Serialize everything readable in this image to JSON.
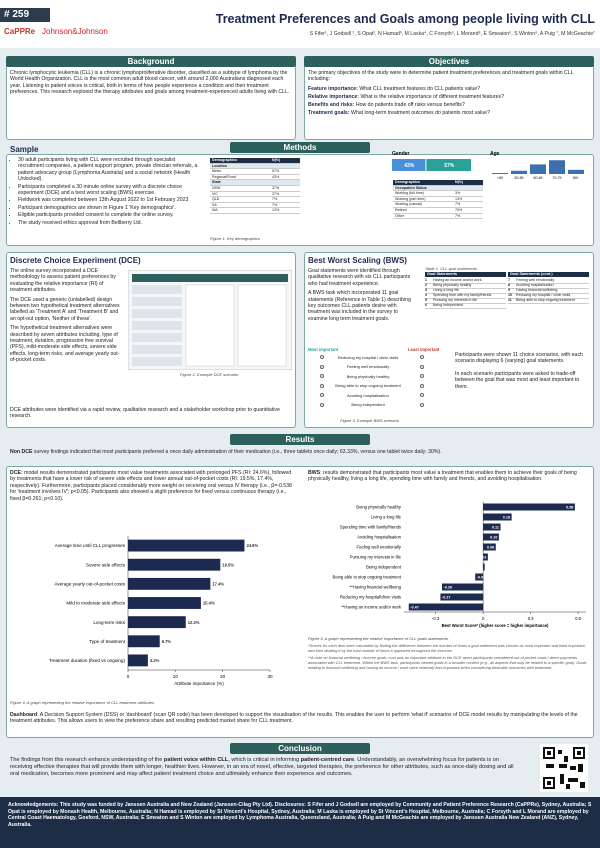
{
  "header": {
    "poster_number": "# 259",
    "logo_1": "CaPPRe",
    "logo_2": "Johnson&Johnson",
    "title": "Treatment Preferences and Goals among people living with CLL",
    "authors": "S Fifer¹, J Godsell ¹, S Opat², N Hamad³, M Laska⁴, C Forsyth⁵, L Morand⁶, E Smeaton⁶, S Winton⁶, A Puig ⁷, M McGeachie⁷"
  },
  "background": {
    "heading": "Background",
    "text": "Chronic lymphocytic leukemia (CLL) is a chronic lymphoproliferative disorder, classified as a subtype of lymphoma by the World Health Organization. CLL is the most common adult blood cancer, with around 2,000 Australians diagnosed each year. Listening to patient voices is critical, both in terms of how people experience a condition and their treatment preferences. This research explored the therapy attributes and goals among treatment-experienced adults living with CLL."
  },
  "objectives": {
    "heading": "Objectives",
    "intro": "The primary objectives of the study were to determine patient treatment preferences and treatment goals within CLL including:",
    "items": [
      {
        "label": "Feature importance:",
        "text": " What CLL treatment features do CLL patients value?"
      },
      {
        "label": "Relative importance:",
        "text": " What is the relative importance of different treatment features?"
      },
      {
        "label": "Benefits and risks:",
        "text": " How do patients trade off risks versus benefits?"
      },
      {
        "label": "Treatment goals:",
        "text": " What long-term treatment outcomes do patients most value?"
      }
    ]
  },
  "methods": {
    "heading": "Methods"
  },
  "sample": {
    "heading": "Sample",
    "bullets": [
      "30 adult participants living with CLL were recruited through specialist recruitment companies, a patient support program, private clinician referrals, a patient advocacy group (Lymphoma Australia) and a social network (Health Unlocked).",
      "Participants completed a 30 minute online survey with a discrete choice experiment (DCE) and a best worst scaling (BWS) exercise.",
      "Fieldwork was completed between 13th August 2022 to 1st February 2023",
      "Participant demographics are shown in Figure 1 'Key demographics'.",
      "Eligible participants provided consent to complete the online survey.",
      "The study received ethics approval from Bellberry Ltd."
    ],
    "table1": {
      "header": [
        "Demographics",
        "N(%)"
      ],
      "rows": [
        [
          "Location",
          ""
        ],
        [
          "Metro",
          "57%"
        ],
        [
          "Regional/Rural",
          "43%"
        ],
        [
          "State",
          ""
        ],
        [
          "NSW",
          "37%"
        ],
        [
          "VIC",
          "37%"
        ],
        [
          "QLD",
          "7%"
        ],
        [
          "SA",
          "7%"
        ],
        [
          "WA",
          "13%"
        ]
      ]
    },
    "table2": {
      "header": [
        "Demographics",
        "N(%)"
      ],
      "rows": [
        [
          "Occupation Status",
          ""
        ],
        [
          "Working (full time)",
          "3%"
        ],
        [
          "Working (part time)",
          "13%"
        ],
        [
          "Working (casual)",
          "7%"
        ],
        [
          "Retired",
          "70%"
        ],
        [
          "Other",
          "7%"
        ]
      ]
    },
    "caption": "Figure 1. Key demographics",
    "gender": {
      "label": "Gender",
      "values": [
        43,
        57
      ],
      "value_labels": [
        "43%",
        "57%"
      ],
      "colors": [
        "#4a90d9",
        "#2aa198"
      ]
    },
    "age": {
      "label": "Age",
      "categories": [
        "<50",
        "50-59",
        "60-69",
        "70-79",
        "80+"
      ],
      "values": [
        3,
        10,
        30,
        43,
        13
      ],
      "color": "#3d6fb0",
      "ylim": [
        0,
        50
      ]
    }
  },
  "dce": {
    "heading": "Discrete Choice Experiment (DCE)",
    "paragraphs": [
      "The online survey incorporated a DCE methodology to assess patient preferences by evaluating the relative importance (RI) of treatment attributes.",
      "The DCE used a generic (unlabelled) design between two hypothetical treatment alternatives labelled as 'Treatment A' and 'Treatment B' and an opt-out option, 'Neither of these'.",
      "The hypothetical treatment alternatives were described by seven attributes including, type of treatment, duration, progression free survival (PFS), mild-moderate side effects, severe side effects, long-term risks, and average yearly out-of-pocket costs."
    ],
    "footer": "DCE attributes were identified via a rapid review, qualitative research and a stakeholder workshop prior to quantitative research.",
    "caption": "Figure 2. Example DCE scenario"
  },
  "bws": {
    "heading": "Best Worst Scaling (BWS)",
    "paragraphs": [
      "Goal statements were identified through qualitative research with six CLL participants who had treatment experience.",
      "A BWS task which incorporated 11 goal statements (Reference in Table 1) describing key outcomes CLL patients desire with treatment was included in the survey to examine long term treatment goals."
    ],
    "table_caption": "Table 1. CLL goal statements",
    "table_header": [
      "Goal Statements",
      "Goal Statements (cont.)"
    ],
    "goals": [
      "Having an income and/or work",
      "Being physically healthy",
      "Living a long life",
      "Spending time with my family/friends",
      "Pursuing my interests in life",
      "Being independent",
      "Feeling well emotionally",
      "Avoiding hospitalisation",
      "Having financial wellbeing",
      "Reducing my hospital / clinic visits",
      "Being able to stop ongoing treatment"
    ],
    "example_most": "Most important",
    "example_least": "Least important",
    "example_items": [
      "Reducing my hospital / clinic visits",
      "Feeling well emotionally",
      "Being physically healthy",
      "Being able to stop ongoing treatment",
      "Avoiding hospitalisation",
      "Being independent"
    ],
    "caption": "Figure 3. Example BWS scenario",
    "right_paragraphs": [
      "Participants were shown 11 choice scenarios, with each scenario displaying 6 (varying) goal statements.",
      "In each scenario participants were asked to trade-off between the goal that was most and least important to them."
    ]
  },
  "results": {
    "heading": "Results",
    "non_dce_label": "Non DCE",
    "non_dce_text": " survey findings indicated that most participants preferred a once daily administration of their medication (i.e., three tablets once daily; 63.33%, versus one tablet twice daily; 30%).",
    "dce_label": "DCE:",
    "dce_text": " model results demonstrated participants most value treatments associated with prolonged PFS (RI: 24.6%), followed by treatments that have a lower risk of severe side effects and lower annual out-of-pocket costs (RI: 19.5%, 17.4%, respectively). Furthermore, participants placed considerably more weight on receiving oral versus IV therapy (i.e., β=-0.538 for 'treatment involves IV'; p<0.05). Participants also showed a slight preference for fixed versus continuous therapy (i.e., fixed β=0.261; p<0.10).",
    "bws_label": "BWS",
    "bws_text": ": results demonstrated that participants most value a treatment that enables them to achieve their goals of being physically healthy, living a long life, spending time with family and friends, and avoiding hospitalisation.",
    "notes": [
      "*Scores for each item were calculated by finding the difference between the number of times a goal statement was chosen as most important and least important, and then dividing it by the total number of times it appeared throughout the exercise.",
      "**A note on financial wellbeing / income goals; cost was an important attribute in the DCE when participants considered out of pocket costs / direct payments associated with CLL treatment. Within the BWS task, participants viewed goals in a broader context (e.g., all aspects that may be related to a specific goal). Goals relating to financial wellbeing and having an income / work were relatively less important when considering desirable outcomes with treatment."
    ],
    "dashboard_label": "Dashboard",
    "dashboard_text": ": A Decision Support System (DSS) or 'dashboard' (scan QR code) has been developed to support the visualisation of the results. This enables the user to perform 'what if' scenarios of DCE model results by manipulating the levels of the treatment attributes. This allows users to view the preference share and resulting predicted market share for CLL treatment."
  },
  "chart_data": [
    {
      "type": "hbar",
      "caption": "Figure 4. A graph representing the relative importance of CLL treatment attributes",
      "xlabel": "Attribute importance (%)",
      "categories": [
        "Average time until CLL progresses",
        "Severe side effects",
        "Average yearly out-of-pocket costs",
        "Mild to moderate side effects",
        "Long-term risks",
        "Type of treatment",
        "Treatment duration (fixed vs ongoing)"
      ],
      "values": [
        24.6,
        19.5,
        17.4,
        15.4,
        12.2,
        6.7,
        4.2
      ],
      "value_labels": [
        "24.6%",
        "19.5%",
        "17.4%",
        "15.4%",
        "12.2%",
        "6.7%",
        "4.2%"
      ],
      "color": "#1b2a4e",
      "xlim": [
        0,
        30
      ],
      "xticks": [
        0,
        10,
        20,
        30
      ],
      "grid": false
    },
    {
      "type": "hbar",
      "caption": "Figure 5. A graph representing the relative importance of CLL goals statements.",
      "xlabel": "Best Worst Score* (higher score = higher importance)",
      "categories": [
        "Being physically healthy",
        "Living a long life",
        "Spending time with family/friends",
        "Avoiding hospitalisation",
        "Feeling well emotionally",
        "Pursuing my interests in life",
        "Being independent",
        "Being able to stop ongoing treatment",
        "**Having financial wellbeing",
        "Reducing my hospital/clinic visits",
        "**Having an income and/or work"
      ],
      "values": [
        0.58,
        0.18,
        0.11,
        0.1,
        0.08,
        0.03,
        0.01,
        -0.05,
        -0.26,
        -0.27,
        -0.47
      ],
      "value_labels": [
        "0.58",
        "0.18",
        "0.11",
        "0.10",
        "0.08",
        "0.03",
        "0.01",
        "-0.05",
        "-0.26",
        "-0.27",
        "-0.47"
      ],
      "color": "#1b2a4e",
      "xlim": [
        -0.5,
        0.65
      ],
      "xticks": [
        {
          "value": -0.3,
          "label": "-0.3"
        },
        0,
        {
          "value": 0.3,
          "label": "0.3"
        },
        {
          "value": 0.6,
          "label": "0.6"
        }
      ],
      "grid": false
    }
  ],
  "conclusion": {
    "heading": "Conclusion",
    "segments": [
      "The findings from this research enhance understanding of the ",
      "patient voice within CLL",
      ", which is critical in informing ",
      "patient-centred care",
      ". Understandably, an overwhelming focus for patients is on receiving effective therapies that will provide them with longer, healthier lives. However, in an era of novel, effective, targeted therapies, the preference for other attributes, such as once-daily dosing and all oral medication, becomes more prominent and may affect patient treatment choice and ultimately enhance their experience and outcomes."
    ]
  },
  "footer": {
    "segments": [
      "Acknowledgements:",
      " This study was funded by Janssen Australia and New Zealand (Janssen-Cilag Pty Ltd). ",
      "Disclosures:",
      " S Fifer and J Godsell are employed by Community and Patient Preference Research (CaPPRe), Sydney, Australia; S Opat is employed by Monash Health, Melbourne, Australia; N Hamad is employed by St Vincent's Hospital, Sydney, Australia; M Laska is employed by St Vincent's Hospital, Melbourne, Australia; C Forsyth and L Morand are employed by Central Coast Haematology, Gosford, NSW, Australia; E Smeaton and S Winton are employed by Lymphoma Australia, Queensland, Australia; A Puig and M McGeachie are employed by Janssen Australia New Zealand (ANZ), Sydney, Australia."
    ]
  }
}
